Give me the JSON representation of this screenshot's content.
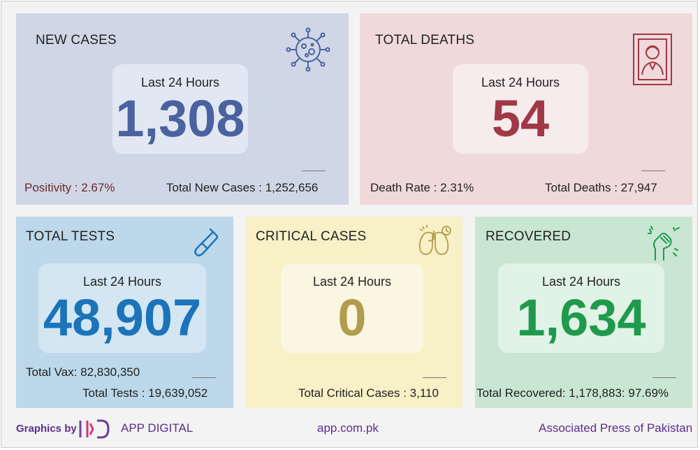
{
  "colors": {
    "new_cases_accent": "#4a62a0",
    "deaths_accent": "#a13845",
    "tests_accent": "#1b74b9",
    "critical_accent": "#b19c4c",
    "recovered_accent": "#1f9a4c",
    "positivity_text": "#6b2a2a",
    "footer_text": "#5a2e8c"
  },
  "new_cases": {
    "title": "NEW CASES",
    "period": "Last 24 Hours",
    "value": "1,308",
    "positivity": "Positivity : 2.67%",
    "total": "Total New Cases : 1,252,656",
    "icon": "virus-icon"
  },
  "total_deaths": {
    "title": "TOTAL DEATHS",
    "period": "Last 24 Hours",
    "value": "54",
    "rate": "Death Rate : 2.31%",
    "total": "Total Deaths : 27,947",
    "icon": "portrait-frame-icon"
  },
  "total_tests": {
    "title": "TOTAL TESTS",
    "period": "Last 24 Hours",
    "value": "48,907",
    "vax": "Total Vax: 82,830,350",
    "total": "Total Tests : 19,639,052",
    "icon": "test-tube-icon"
  },
  "critical_cases": {
    "title": "CRITICAL CASES",
    "period": "Last 24 Hours",
    "value": "0",
    "total": "Total Critical Cases : 3,110",
    "icon": "lungs-icon"
  },
  "recovered": {
    "title": "RECOVERED",
    "period": "Last 24 Hours",
    "value": "1,634",
    "total": "Total Recovered: 1,178,883: 97.69%",
    "icon": "raised-fist-icon"
  },
  "footer": {
    "graphics_by": "Graphics by",
    "brand": "APP DIGITAL",
    "website": "app.com.pk",
    "agency": "Associated Press of Pakistan"
  }
}
